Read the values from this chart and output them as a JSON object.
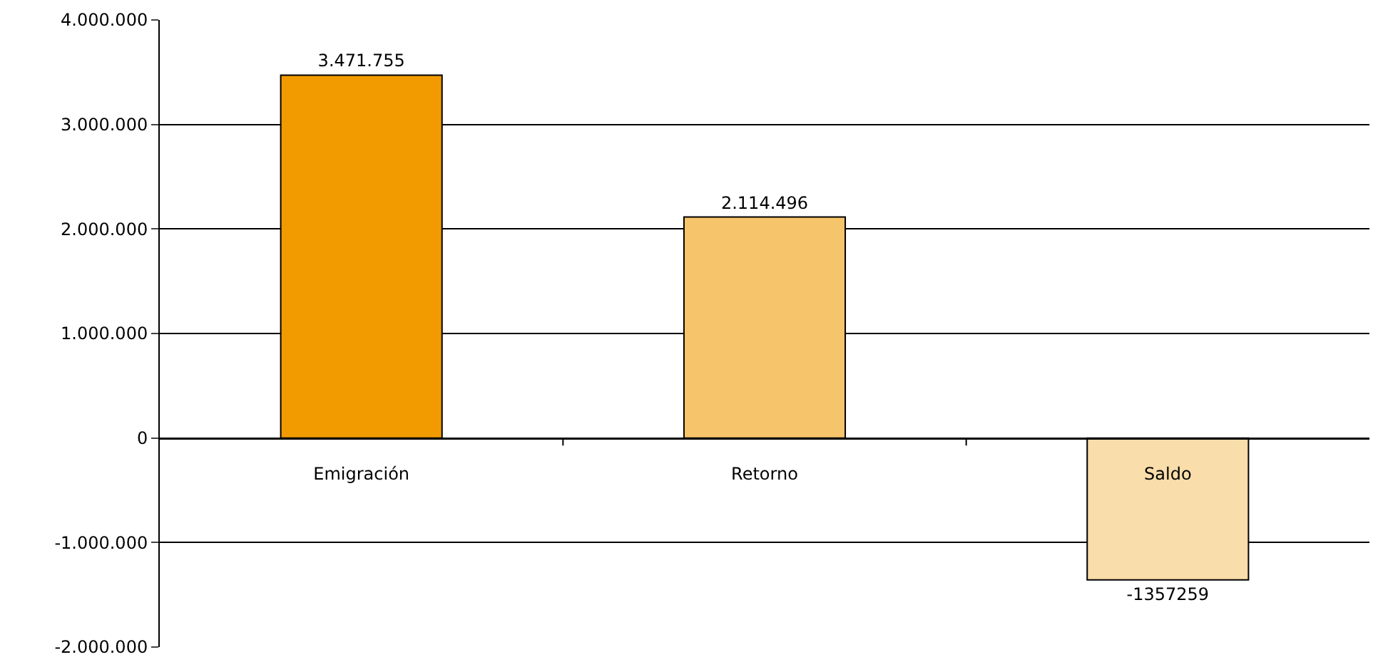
{
  "chart_data": {
    "type": "bar",
    "categories": [
      "Emigración",
      "Retorno",
      "Saldo"
    ],
    "values": [
      3471755,
      2114496,
      -1357259
    ],
    "colors": [
      "#f29b00",
      "#f6c46a",
      "#f9ddaa"
    ],
    "value_labels": [
      "3.471.755",
      "2.114.496",
      "-1357259"
    ],
    "ylim": [
      -2000000,
      4000000
    ],
    "yticks": [
      {
        "value": -2000000,
        "label": "-2.000.000"
      },
      {
        "value": -1000000,
        "label": "-1.000.000"
      },
      0,
      {
        "value": 1000000,
        "label": "1.000.000"
      },
      {
        "value": 2000000,
        "label": "2.000.000"
      },
      {
        "value": 3000000,
        "label": "3.000.000"
      },
      {
        "value": 4000000,
        "label": "4.000.000"
      }
    ],
    "grid": "y"
  }
}
